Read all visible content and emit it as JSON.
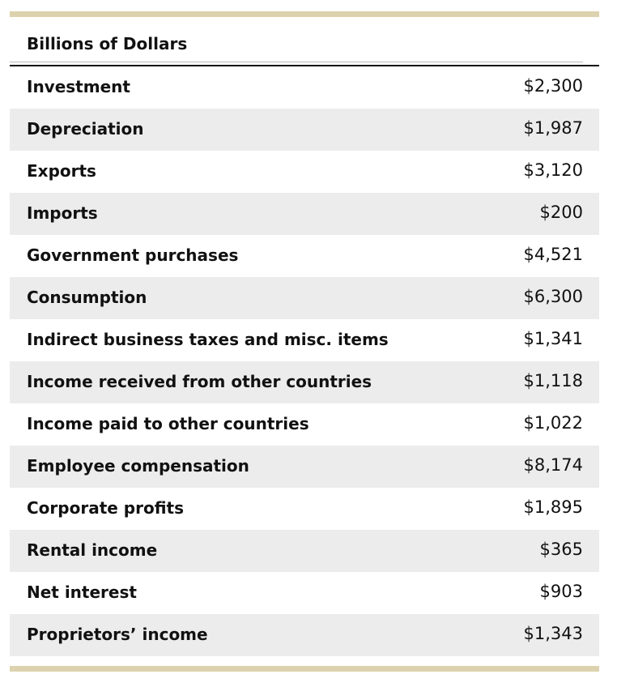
{
  "header": {
    "title": "Billions of Dollars"
  },
  "table": {
    "rows": [
      [
        "Investment",
        "$2,300"
      ],
      [
        "Depreciation",
        "$1,987"
      ],
      [
        "Exports",
        "$3,120"
      ],
      [
        "Imports",
        "$200"
      ],
      [
        "Government purchases",
        "$4,521"
      ],
      [
        "Consumption",
        "$6,300"
      ],
      [
        "Indirect business taxes and misc. items",
        "$1,341"
      ],
      [
        "Income received from other countries",
        "$1,118"
      ],
      [
        "Income paid to other countries",
        "$1,022"
      ],
      [
        "Employee compensation",
        "$8,174"
      ],
      [
        "Corporate profits",
        "$1,895"
      ],
      [
        "Rental income",
        "$365"
      ],
      [
        "Net interest",
        "$903"
      ],
      [
        "Proprietors’ income",
        "$1,343"
      ]
    ]
  }
}
